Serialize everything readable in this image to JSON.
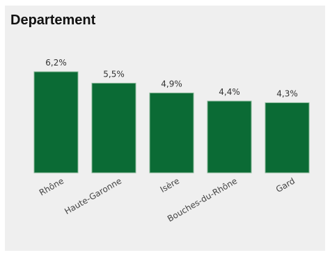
{
  "chart_data": {
    "type": "bar",
    "title": "Departement",
    "categories": [
      "Rhône",
      "Haute-Garonne",
      "Isère",
      "Bouches-du-Rhône",
      "Gard"
    ],
    "values": [
      6.2,
      5.5,
      4.9,
      4.4,
      4.3
    ],
    "value_labels": [
      "6,2%",
      "5,5%",
      "4,9%",
      "4,4%",
      "4,3%"
    ],
    "xlabel": "",
    "ylabel": "",
    "ylim": [
      0,
      6.2
    ],
    "grid": false,
    "legend": "none",
    "colors": {
      "bar": "#0b6b35",
      "bar_stroke": "#88b898",
      "background": "#efefef"
    }
  }
}
